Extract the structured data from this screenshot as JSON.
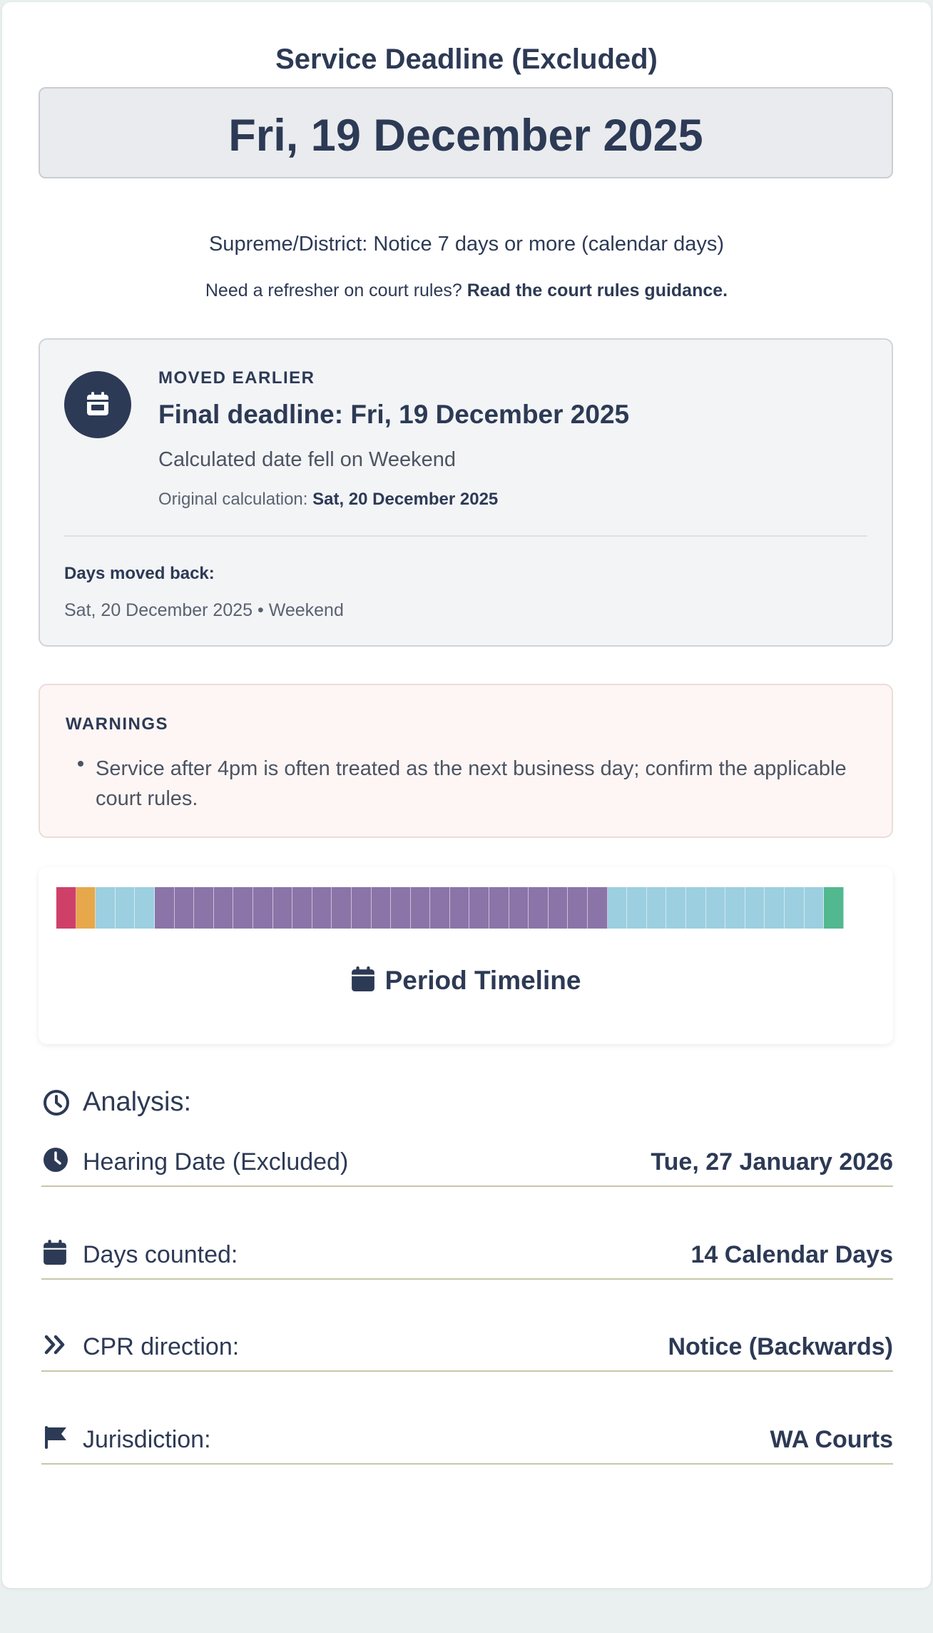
{
  "header": {
    "title": "Service Deadline (Excluded)",
    "deadline": "Fri, 19 December 2025"
  },
  "rule": {
    "text": "Supreme/District: Notice 7 days or more (calendar days)",
    "refresher_prefix": "Need a refresher on court rules?",
    "refresher_link": "Read the court rules guidance."
  },
  "moved": {
    "kicker": "MOVED EARLIER",
    "final": "Final deadline: Fri, 19 December 2025",
    "reason": "Calculated date fell on Weekend",
    "original_label": "Original calculation:",
    "original_value": "Sat, 20 December 2025",
    "days_moved_label": "Days moved back:",
    "days_moved_value": "Sat, 20 December 2025 • Weekend",
    "icon": "calendar-icon"
  },
  "warnings": {
    "kicker": "WARNINGS",
    "items": [
      "Service after 4pm is often treated as the next business day; confirm the applicable court rules."
    ]
  },
  "timeline": {
    "title": "Period Timeline",
    "colors": {
      "start": "#cf4068",
      "moved": "#e6a84a",
      "calendar": "#9ccfe0",
      "excluded": "#8b74a8",
      "end": "#52b890"
    },
    "cells": [
      "start",
      "moved",
      "calendar",
      "calendar",
      "calendar",
      "excluded",
      "excluded",
      "excluded",
      "excluded",
      "excluded",
      "excluded",
      "excluded",
      "excluded",
      "excluded",
      "excluded",
      "excluded",
      "excluded",
      "excluded",
      "excluded",
      "excluded",
      "excluded",
      "excluded",
      "excluded",
      "excluded",
      "excluded",
      "excluded",
      "excluded",
      "excluded",
      "calendar",
      "calendar",
      "calendar",
      "calendar",
      "calendar",
      "calendar",
      "calendar",
      "calendar",
      "calendar",
      "calendar",
      "calendar",
      "end"
    ]
  },
  "analysis": {
    "title": "Analysis:",
    "rows": [
      {
        "label": "Hearing Date (Excluded)",
        "value": "Tue, 27 January 2026",
        "icon": "clock-icon"
      },
      {
        "label": "Days counted:",
        "value": "14 Calendar Days",
        "icon": "calendar-icon"
      },
      {
        "label": "CPR direction:",
        "value": "Notice (Backwards)",
        "icon": "double-chevron-right-icon"
      },
      {
        "label": "Jurisdiction:",
        "value": "WA Courts",
        "icon": "flag-icon"
      }
    ]
  }
}
